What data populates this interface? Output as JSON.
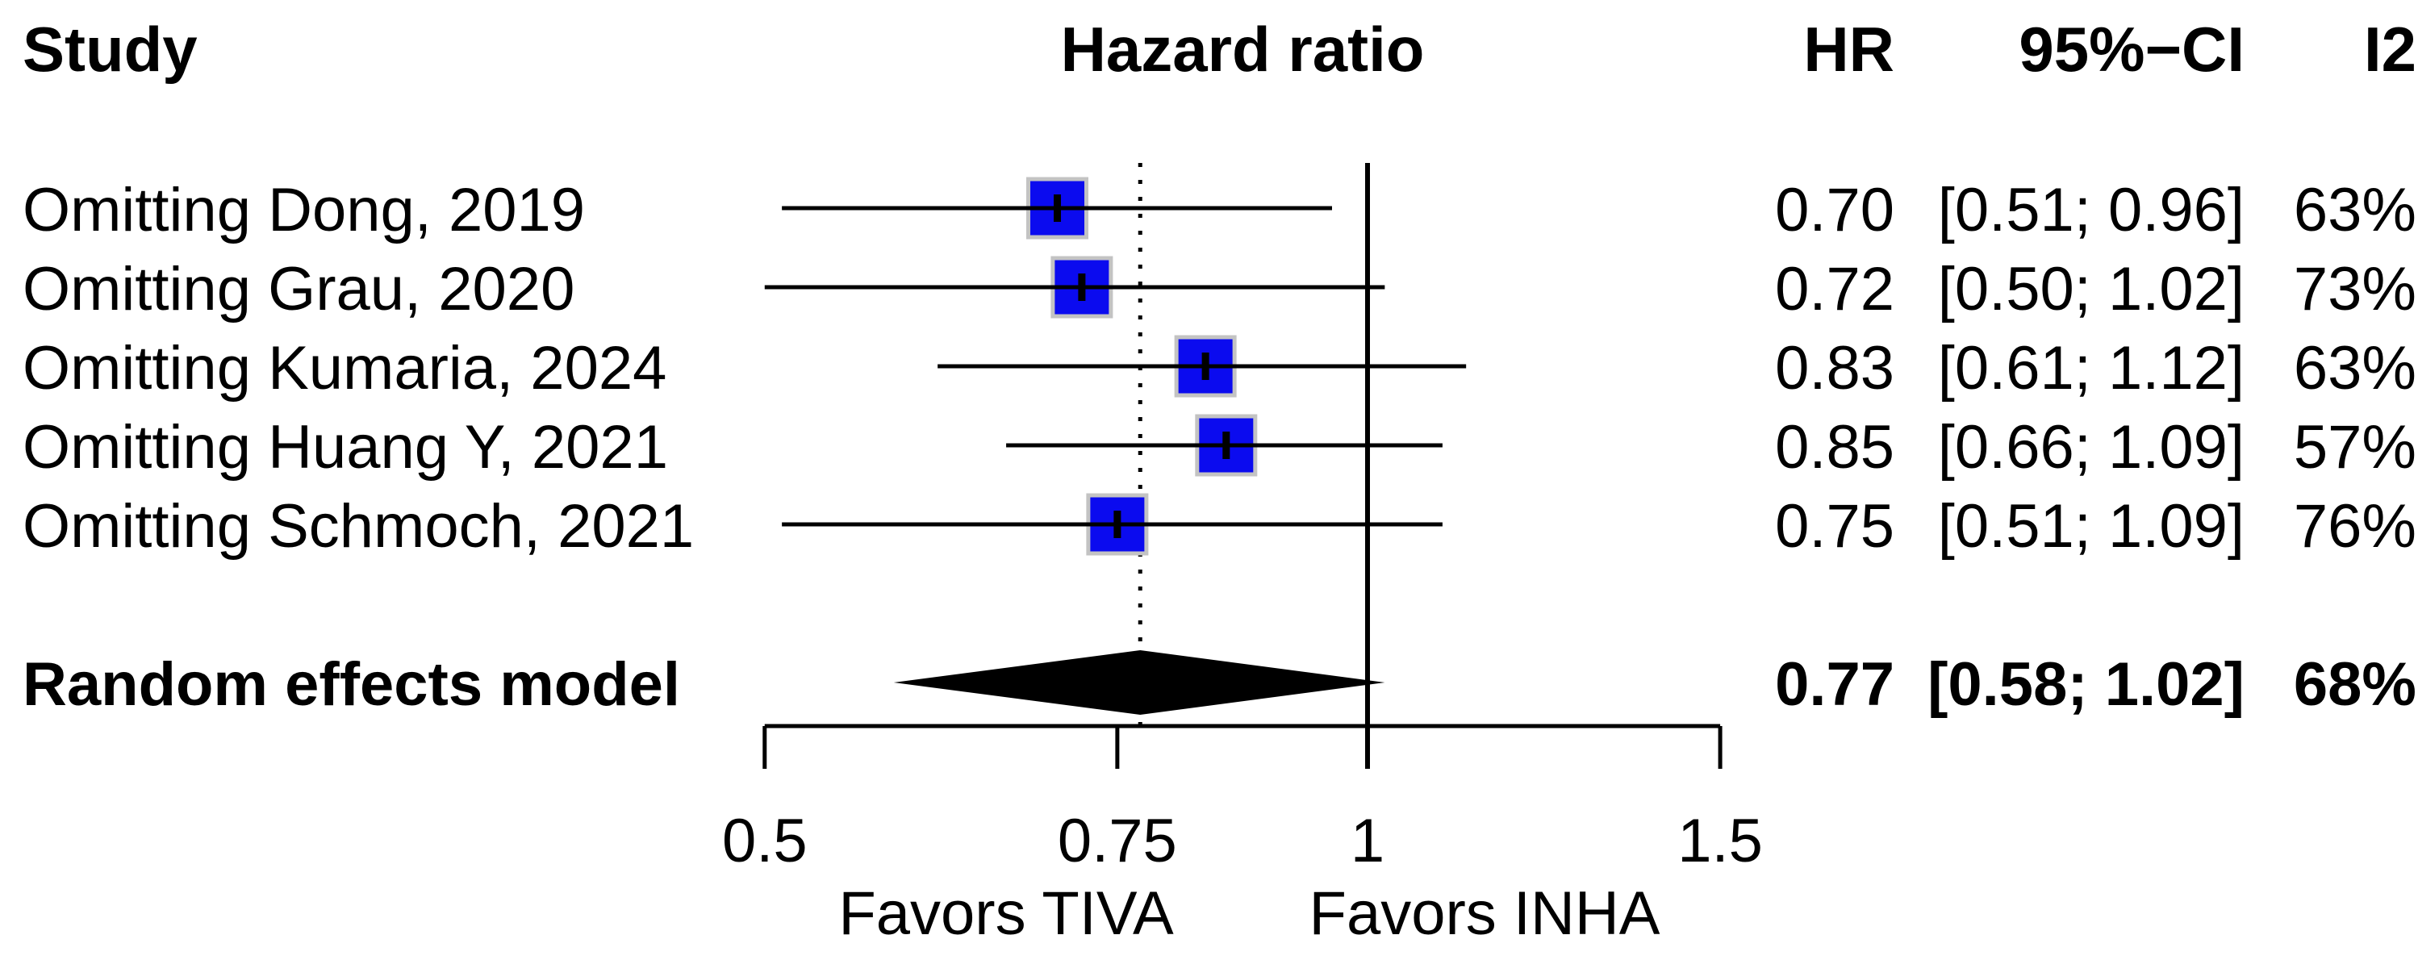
{
  "headers": {
    "study": "Study",
    "plot": "Hazard ratio",
    "hr": "HR",
    "ci": "95%−CI",
    "i2": "I2"
  },
  "chart_data": {
    "type": "forest",
    "title": "Hazard ratio",
    "x_scale": "log",
    "x_ticks": [
      0.5,
      0.75,
      1,
      1.5
    ],
    "x_tick_labels": [
      "0.5",
      "0.75",
      "1",
      "1.5"
    ],
    "xlim": [
      0.5,
      1.5
    ],
    "ref_line": 1.0,
    "pooled_dotted_line": 0.77,
    "axis_labels": {
      "left": "Favors TIVA",
      "right": "Favors INHA"
    },
    "rows": [
      {
        "study": "Omitting Dong, 2019",
        "hr": 0.7,
        "lower": 0.51,
        "upper": 0.96,
        "hr_text": "0.70",
        "ci_text": "[0.51; 0.96]",
        "i2_text": "63%"
      },
      {
        "study": "Omitting Grau, 2020",
        "hr": 0.72,
        "lower": 0.5,
        "upper": 1.02,
        "hr_text": "0.72",
        "ci_text": "[0.50; 1.02]",
        "i2_text": "73%"
      },
      {
        "study": "Omitting Kumaria, 2024",
        "hr": 0.83,
        "lower": 0.61,
        "upper": 1.12,
        "hr_text": "0.83",
        "ci_text": "[0.61; 1.12]",
        "i2_text": "63%"
      },
      {
        "study": "Omitting Huang Y, 2021",
        "hr": 0.85,
        "lower": 0.66,
        "upper": 1.09,
        "hr_text": "0.85",
        "ci_text": "[0.66; 1.09]",
        "i2_text": "57%"
      },
      {
        "study": "Omitting Schmoch, 2021",
        "hr": 0.75,
        "lower": 0.51,
        "upper": 1.09,
        "hr_text": "0.75",
        "ci_text": "[0.51; 1.09]",
        "i2_text": "76%"
      }
    ],
    "pooled": {
      "study": "Random effects model",
      "hr": 0.77,
      "lower": 0.58,
      "upper": 1.02,
      "hr_text": "0.77",
      "ci_text": "[0.58; 1.02]",
      "i2_text": "68%"
    }
  },
  "colors": {
    "square": "#0b0bef",
    "square_border": "#c3c3c3",
    "diamond": "#000000",
    "line": "#000000"
  }
}
